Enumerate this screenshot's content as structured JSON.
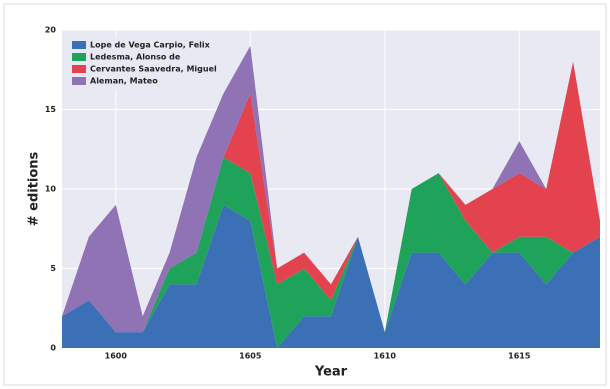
{
  "chart_data": {
    "type": "stacked-area",
    "x_label": "Year",
    "y_label": "# editions",
    "x": [
      1598,
      1599,
      1600,
      1601,
      1602,
      1603,
      1604,
      1605,
      1606,
      1607,
      1608,
      1609,
      1610,
      1611,
      1612,
      1613,
      1614,
      1615,
      1616,
      1617,
      1618
    ],
    "series": [
      {
        "name": "Lope de Vega Carpio, Felix",
        "color": "#3b6fb6",
        "values": [
          2,
          3,
          1,
          1,
          4,
          4,
          9,
          8,
          0,
          2,
          2,
          7,
          1,
          6,
          6,
          4,
          6,
          6,
          4,
          6,
          7
        ]
      },
      {
        "name": "Ledesma, Alonso de",
        "color": "#1fa25a",
        "values": [
          0,
          0,
          0,
          0,
          1,
          2,
          3,
          3,
          4,
          3,
          1,
          0,
          0,
          4,
          5,
          4,
          0,
          1,
          3,
          0,
          0
        ]
      },
      {
        "name": "Cervantes Saavedra, Miguel",
        "color": "#e2434f",
        "values": [
          0,
          0,
          0,
          0,
          0,
          0,
          0,
          5,
          1,
          1,
          1,
          0,
          0,
          0,
          0,
          1,
          4,
          4,
          3,
          12,
          1
        ]
      },
      {
        "name": "Aleman, Mateo",
        "color": "#8f73b5",
        "values": [
          0,
          4,
          8,
          1,
          1,
          6,
          4,
          3,
          0,
          0,
          0,
          0,
          0,
          0,
          0,
          0,
          0,
          2,
          0,
          0,
          0
        ]
      }
    ],
    "xlim": [
      1598,
      1618
    ],
    "xticks": [
      1600,
      1605,
      1610,
      1615
    ],
    "ylim": [
      0,
      20
    ],
    "yticks": [
      0,
      5,
      10,
      15,
      20
    ],
    "grid": true,
    "legend": "upper-left"
  }
}
